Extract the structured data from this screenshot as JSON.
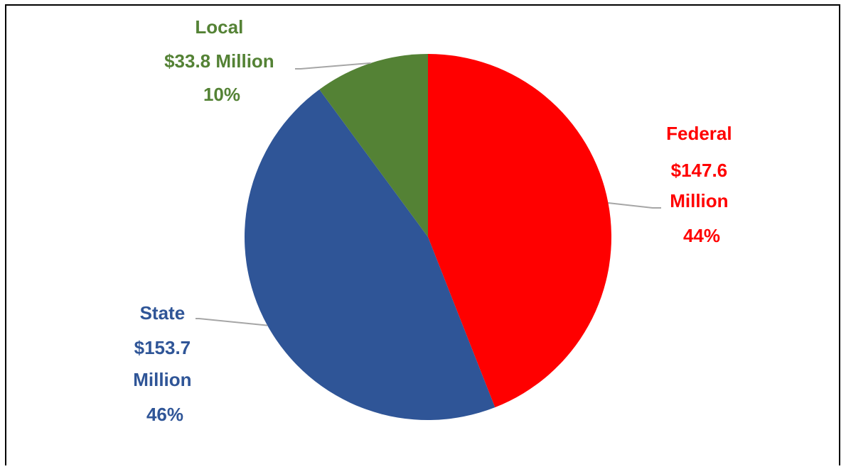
{
  "chart_data": {
    "type": "pie",
    "slices": [
      {
        "name": "Federal",
        "amount": "$147.6 Million",
        "value": 147.6,
        "percent": "44%",
        "color": "#FF0000"
      },
      {
        "name": "State",
        "amount": "$153.7 Million",
        "value": 153.7,
        "percent": "46%",
        "color": "#2F5597"
      },
      {
        "name": "Local",
        "amount": "$33.8 Million",
        "value": 33.8,
        "percent": "10%",
        "color": "#548235"
      }
    ],
    "labels": {
      "federal": {
        "line1": "Federal",
        "line2": "$147.6",
        "line3": "Million",
        "line4": "44%"
      },
      "state": {
        "line1": "State",
        "line2": "$153.7",
        "line3": "Million",
        "line4": "46%"
      },
      "local": {
        "line1": "Local",
        "line2": "$33.8 Million",
        "line3": "10%"
      }
    },
    "leader_line_color": "#A6A6A6"
  }
}
